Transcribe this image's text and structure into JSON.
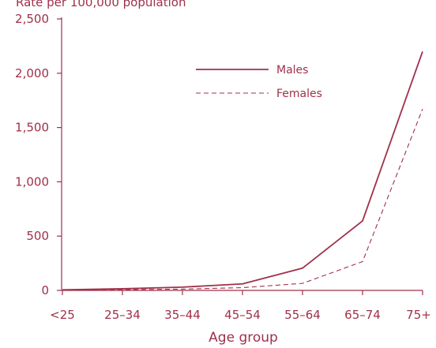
{
  "colors": {
    "accent": "#a0304a"
  },
  "header": {
    "partial_title": "Rate per 100,000 population"
  },
  "chart_data": {
    "type": "line",
    "categories": [
      "<25",
      "25–34",
      "35–44",
      "45–54",
      "55–64",
      "65–74",
      "75+"
    ],
    "series": [
      {
        "name": "Males",
        "style": "solid",
        "values": [
          5,
          15,
          30,
          60,
          205,
          640,
          2200
        ]
      },
      {
        "name": "Females",
        "style": "dashed",
        "values": [
          2,
          6,
          12,
          25,
          65,
          265,
          1670
        ]
      }
    ],
    "xlabel": "Age group",
    "ylabel": "",
    "ylim": [
      0,
      2500
    ],
    "yticks": [
      0,
      500,
      1000,
      1500,
      2000,
      2500
    ],
    "ytick_labels": [
      "0",
      "500",
      "1,000",
      "1,500",
      "2,000",
      "2,500"
    ],
    "grid": false,
    "legend_position": "upper-center"
  }
}
